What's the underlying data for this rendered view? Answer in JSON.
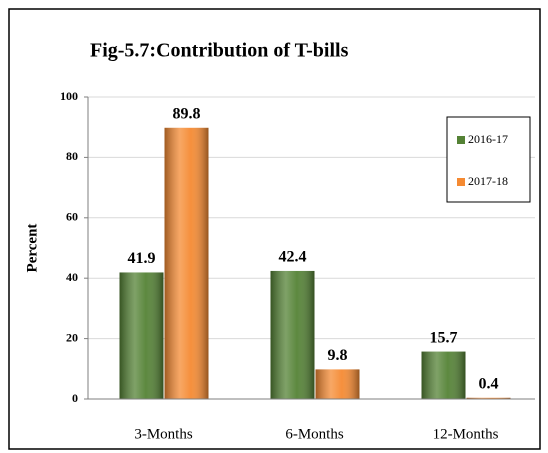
{
  "chart_data": {
    "type": "bar",
    "title": "Fig-5.7:Contribution of T-bills",
    "y_label": "Percent",
    "categories": [
      "3-Months",
      "6-Months",
      "12-Months"
    ],
    "series": [
      {
        "name": "2016-17",
        "color": "#548235",
        "values": [
          41.9,
          42.4,
          15.7
        ]
      },
      {
        "name": "2017-18",
        "color": "#f58a32",
        "values": [
          89.8,
          9.8,
          0.4
        ]
      }
    ],
    "ylim": [
      0,
      100
    ],
    "yticks": [
      0,
      20,
      40,
      60,
      80,
      100
    ],
    "grid": true,
    "legend": "upper right"
  }
}
